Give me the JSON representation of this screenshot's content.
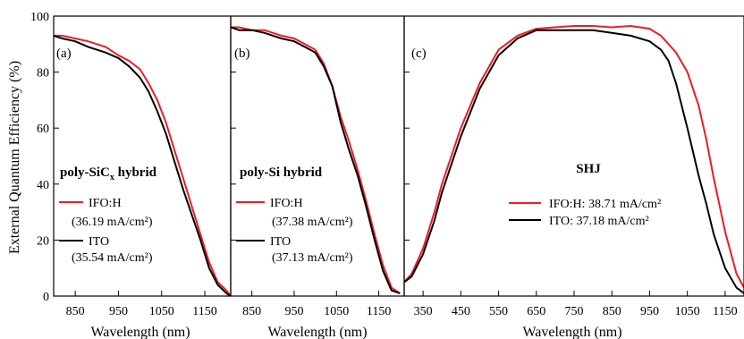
{
  "figure": {
    "y_axis_label": "External Quantum Efficiency (%)",
    "y_ticks": [
      0,
      20,
      40,
      60,
      80,
      100
    ],
    "colors": {
      "IFO:H": "#ee1c24",
      "ITO": "#000000"
    }
  },
  "chart_data": [
    {
      "type": "line",
      "panel": "(a)",
      "title": "poly-SiCₓ hybrid",
      "xlabel": "Wavelength (nm)",
      "ylabel": "External Quantum Efficiency (%)",
      "xlim": [
        800,
        1210
      ],
      "ylim": [
        0,
        100
      ],
      "x_ticks": [
        850,
        950,
        1050,
        1150
      ],
      "y_ticks": [
        0,
        20,
        40,
        60,
        80,
        100
      ],
      "legend": [
        {
          "label": "IFO:H",
          "value": "(36.19 mA/cm²)",
          "color": "#ee1c24"
        },
        {
          "label": "ITO",
          "value": "(35.54 mA/cm²)",
          "color": "#000000"
        }
      ],
      "series": [
        {
          "name": "IFO:H",
          "color": "#ee1c24",
          "x": [
            800,
            820,
            850,
            880,
            900,
            920,
            950,
            975,
            1000,
            1020,
            1040,
            1060,
            1080,
            1100,
            1120,
            1140,
            1160,
            1180,
            1200,
            1210
          ],
          "y": [
            93,
            93,
            92,
            91,
            90,
            89,
            86,
            84,
            81,
            76,
            70,
            62,
            52,
            42,
            32,
            22,
            12,
            5,
            2,
            0
          ]
        },
        {
          "name": "ITO",
          "color": "#000000",
          "x": [
            800,
            820,
            850,
            880,
            900,
            920,
            950,
            975,
            1000,
            1020,
            1040,
            1060,
            1080,
            1100,
            1120,
            1140,
            1160,
            1180,
            1200,
            1210
          ],
          "y": [
            93,
            92,
            91,
            89,
            88,
            87,
            85,
            82,
            78,
            73,
            66,
            58,
            48,
            38,
            29,
            20,
            10,
            4,
            1,
            0
          ]
        }
      ]
    },
    {
      "type": "line",
      "panel": "(b)",
      "title": "poly-Si hybrid",
      "xlabel": "Wavelength (nm)",
      "ylabel": "",
      "xlim": [
        800,
        1210
      ],
      "ylim": [
        0,
        100
      ],
      "x_ticks": [
        850,
        950,
        1050,
        1150
      ],
      "y_ticks": [
        0,
        20,
        40,
        60,
        80,
        100
      ],
      "legend": [
        {
          "label": "IFO:H",
          "value": "(37.38 mA/cm²)",
          "color": "#ee1c24"
        },
        {
          "label": "ITO",
          "value": "(37.13 mA/cm²)",
          "color": "#000000"
        }
      ],
      "series": [
        {
          "name": "IFO:H",
          "color": "#ee1c24",
          "x": [
            800,
            820,
            850,
            880,
            900,
            920,
            950,
            975,
            1000,
            1020,
            1040,
            1060,
            1080,
            1100,
            1120,
            1140,
            1160,
            1180,
            1200
          ],
          "y": [
            96,
            96,
            95,
            95,
            94,
            93,
            92,
            90,
            88,
            83,
            75,
            64,
            55,
            45,
            34,
            22,
            11,
            3,
            1
          ]
        },
        {
          "name": "ITO",
          "color": "#000000",
          "x": [
            800,
            820,
            850,
            880,
            900,
            920,
            950,
            975,
            1000,
            1020,
            1040,
            1060,
            1080,
            1100,
            1120,
            1140,
            1160,
            1180,
            1200
          ],
          "y": [
            96,
            95,
            95,
            94,
            93,
            92,
            91,
            89,
            87,
            82,
            75,
            62,
            52,
            43,
            32,
            20,
            9,
            2,
            1
          ]
        }
      ]
    },
    {
      "type": "line",
      "panel": "(c)",
      "title": "SHJ",
      "xlabel": "Wavelength (nm)",
      "ylabel": "",
      "xlim": [
        300,
        1200
      ],
      "ylim": [
        0,
        100
      ],
      "x_ticks": [
        350,
        450,
        550,
        650,
        750,
        850,
        950,
        1050,
        1150
      ],
      "y_ticks": [
        0,
        20,
        40,
        60,
        80,
        100
      ],
      "legend": [
        {
          "label": "IFO:H: 38.71 mA/cm²",
          "color": "#ee1c24"
        },
        {
          "label": "ITO: 37.18 mA/cm²",
          "color": "#000000"
        }
      ],
      "series": [
        {
          "name": "IFO:H",
          "color": "#ee1c24",
          "x": [
            300,
            320,
            350,
            380,
            400,
            450,
            500,
            550,
            600,
            650,
            700,
            750,
            800,
            850,
            900,
            950,
            980,
            1000,
            1020,
            1050,
            1080,
            1100,
            1120,
            1150,
            1180,
            1200
          ],
          "y": [
            5,
            8,
            17,
            30,
            40,
            60,
            76,
            88,
            93,
            95.5,
            96,
            96.5,
            96.5,
            96,
            96.5,
            95.5,
            93,
            90,
            87,
            80,
            68,
            56,
            42,
            23,
            8,
            3
          ]
        },
        {
          "name": "ITO",
          "color": "#000000",
          "x": [
            300,
            320,
            350,
            380,
            400,
            450,
            500,
            550,
            600,
            650,
            700,
            750,
            800,
            850,
            900,
            950,
            980,
            1000,
            1020,
            1050,
            1080,
            1100,
            1120,
            1150,
            1180,
            1200
          ],
          "y": [
            5,
            7,
            15,
            27,
            37,
            57,
            74,
            86,
            92,
            95,
            95,
            95,
            95,
            94,
            93,
            91,
            88,
            84,
            76,
            60,
            43,
            33,
            22,
            10,
            3,
            1
          ]
        }
      ]
    }
  ]
}
